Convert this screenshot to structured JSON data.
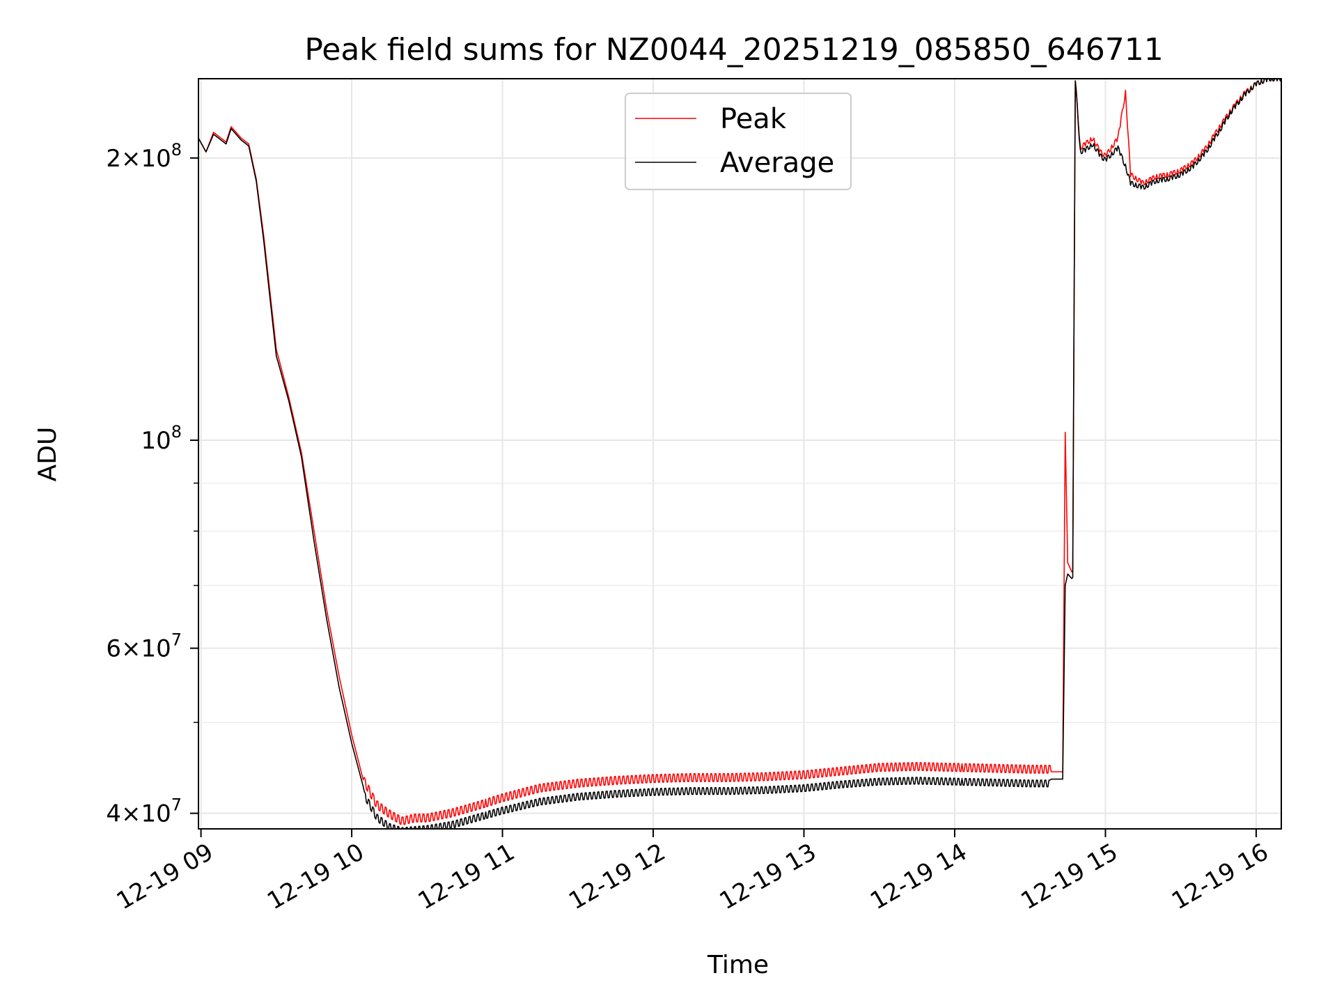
{
  "chart_data": {
    "type": "line",
    "title": "Peak field sums for NZ0044_20251219_085850_646711",
    "xlabel": "Time",
    "ylabel": "ADU",
    "y_scale": "log",
    "ylim": [
      38500000,
      243000000
    ],
    "xlim": [
      "12-19 08:59",
      "12-19 16:10"
    ],
    "grid": true,
    "legend_position": "top-center",
    "x_ticks": [
      {
        "t": "12-19 09:00",
        "label": "12-19 09"
      },
      {
        "t": "12-19 10:00",
        "label": "12-19 10"
      },
      {
        "t": "12-19 11:00",
        "label": "12-19 11"
      },
      {
        "t": "12-19 12:00",
        "label": "12-19 12"
      },
      {
        "t": "12-19 13:00",
        "label": "12-19 13"
      },
      {
        "t": "12-19 14:00",
        "label": "12-19 14"
      },
      {
        "t": "12-19 15:00",
        "label": "12-19 15"
      },
      {
        "t": "12-19 16:00",
        "label": "12-19 16"
      }
    ],
    "y_ticks": [
      {
        "v": 40000000,
        "mant": "4",
        "exp": "7"
      },
      {
        "v": 60000000,
        "mant": "6",
        "exp": "7"
      },
      {
        "v": 100000000,
        "mant": "",
        "exp": "8"
      },
      {
        "v": 200000000,
        "mant": "2",
        "exp": "8"
      }
    ],
    "y_minor_ticks": [
      50000000,
      70000000,
      80000000,
      90000000
    ],
    "series": [
      {
        "name": "Peak",
        "color": "#ff0000",
        "x": [
          "12-19 08:59",
          "12-19 09:02",
          "12-19 09:05",
          "12-19 09:10",
          "12-19 09:12",
          "12-19 09:16",
          "12-19 09:19",
          "12-19 09:22",
          "12-19 09:25",
          "12-19 09:30",
          "12-19 09:35",
          "12-19 09:40",
          "12-19 09:45",
          "12-19 09:50",
          "12-19 09:55",
          "12-19 10:00",
          "12-19 10:05",
          "12-19 10:10",
          "12-19 10:15",
          "12-19 10:20",
          "12-19 10:25",
          "12-19 10:30",
          "12-19 10:40",
          "12-19 10:50",
          "12-19 11:00",
          "12-19 11:15",
          "12-19 11:30",
          "12-19 11:45",
          "12-19 12:00",
          "12-19 12:15",
          "12-19 12:30",
          "12-19 12:45",
          "12-19 13:00",
          "12-19 13:15",
          "12-19 13:30",
          "12-19 13:45",
          "12-19 14:00",
          "12-19 14:15",
          "12-19 14:30",
          "12-19 14:43",
          "12-19 14:44",
          "12-19 14:45",
          "12-19 14:47",
          "12-19 14:48",
          "12-19 14:50",
          "12-19 14:52",
          "12-19 14:55",
          "12-19 14:58",
          "12-19 15:00",
          "12-19 15:05",
          "12-19 15:08",
          "12-19 15:10",
          "12-19 15:15",
          "12-19 15:20",
          "12-19 15:25",
          "12-19 15:30",
          "12-19 15:35",
          "12-19 15:40",
          "12-19 15:45",
          "12-19 15:50",
          "12-19 15:55",
          "12-19 16:00",
          "12-19 16:05",
          "12-19 16:10"
        ],
        "values": [
          210000000,
          203000000,
          213000000,
          208000000,
          216000000,
          210000000,
          207000000,
          190000000,
          165000000,
          125000000,
          111000000,
          97000000,
          80000000,
          66000000,
          56000000,
          48500000,
          43000000,
          40600000,
          39700000,
          39000000,
          39300000,
          39300000,
          39800000,
          40500000,
          41300000,
          42300000,
          42800000,
          43100000,
          43300000,
          43400000,
          43400000,
          43500000,
          43700000,
          44100000,
          44500000,
          44600000,
          44500000,
          44400000,
          44300000,
          44300000,
          102000000,
          74000000,
          72000000,
          243000000,
          205000000,
          207000000,
          210000000,
          203000000,
          201000000,
          210000000,
          235000000,
          192000000,
          188000000,
          191000000,
          192000000,
          194000000,
          198000000,
          205000000,
          215000000,
          225000000,
          234000000,
          240000000,
          243000000,
          243000000
        ]
      },
      {
        "name": "Average",
        "color": "#000000",
        "x": [
          "12-19 08:59",
          "12-19 09:02",
          "12-19 09:05",
          "12-19 09:10",
          "12-19 09:12",
          "12-19 09:16",
          "12-19 09:19",
          "12-19 09:22",
          "12-19 09:25",
          "12-19 09:30",
          "12-19 09:35",
          "12-19 09:40",
          "12-19 09:45",
          "12-19 09:50",
          "12-19 09:55",
          "12-19 10:00",
          "12-19 10:05",
          "12-19 10:10",
          "12-19 10:15",
          "12-19 10:20",
          "12-19 10:25",
          "12-19 10:30",
          "12-19 10:40",
          "12-19 10:50",
          "12-19 11:00",
          "12-19 11:15",
          "12-19 11:30",
          "12-19 11:45",
          "12-19 12:00",
          "12-19 12:15",
          "12-19 12:30",
          "12-19 12:45",
          "12-19 13:00",
          "12-19 13:15",
          "12-19 13:30",
          "12-19 13:45",
          "12-19 14:00",
          "12-19 14:15",
          "12-19 14:30",
          "12-19 14:43",
          "12-19 14:44",
          "12-19 14:45",
          "12-19 14:47",
          "12-19 14:48",
          "12-19 14:50",
          "12-19 14:52",
          "12-19 14:55",
          "12-19 14:58",
          "12-19 15:00",
          "12-19 15:05",
          "12-19 15:08",
          "12-19 15:10",
          "12-19 15:15",
          "12-19 15:20",
          "12-19 15:25",
          "12-19 15:30",
          "12-19 15:35",
          "12-19 15:40",
          "12-19 15:45",
          "12-19 15:50",
          "12-19 15:55",
          "12-19 16:00",
          "12-19 16:05",
          "12-19 16:10"
        ],
        "values": [
          210000000,
          203000000,
          212000000,
          207000000,
          215000000,
          209000000,
          206000000,
          189000000,
          163000000,
          123000000,
          110000000,
          96000000,
          78000000,
          64500000,
          54500000,
          47500000,
          42300000,
          40000000,
          39100000,
          38700000,
          38800000,
          38900000,
          39300000,
          40000000,
          40700000,
          41600000,
          42100000,
          42400000,
          42600000,
          42700000,
          42700000,
          42800000,
          43000000,
          43400000,
          43700000,
          43800000,
          43700000,
          43600000,
          43500000,
          43500000,
          70000000,
          72000000,
          71000000,
          243000000,
          203000000,
          204000000,
          207000000,
          201000000,
          199000000,
          205000000,
          196000000,
          188000000,
          186000000,
          189000000,
          190000000,
          192000000,
          196000000,
          203000000,
          213000000,
          224000000,
          233000000,
          240000000,
          243000000,
          243000000
        ]
      }
    ]
  }
}
